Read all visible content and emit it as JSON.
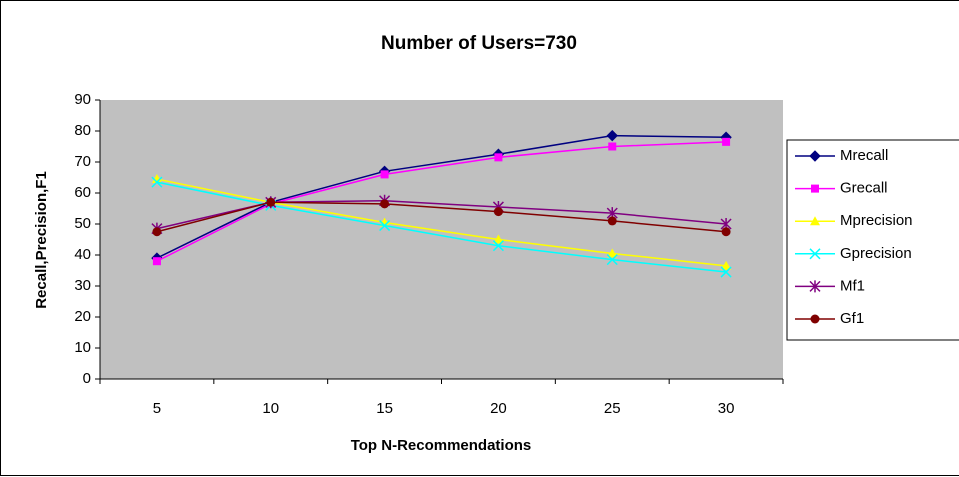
{
  "chart_data": {
    "type": "line",
    "title": "Number of Users=730",
    "x_label": "Top N-Recommendations",
    "y_label": "Recall,Precision,F1",
    "categories": [
      "5",
      "10",
      "15",
      "20",
      "25",
      "30"
    ],
    "ylim": [
      0,
      90
    ],
    "yticks": [
      0,
      10,
      20,
      30,
      40,
      50,
      60,
      70,
      80,
      90
    ],
    "grid": false,
    "legend": "right",
    "series": [
      {
        "name": "Mrecall",
        "color": "#000080",
        "marker": "diamond",
        "values": [
          39,
          57,
          67,
          72.5,
          78.5,
          78
        ]
      },
      {
        "name": "Grecall",
        "color": "#FF00FF",
        "marker": "square",
        "values": [
          38,
          56.5,
          66,
          71.5,
          75,
          76.5
        ]
      },
      {
        "name": "Mprecision",
        "color": "#FFFF00",
        "marker": "triangle",
        "values": [
          64.5,
          57,
          50.5,
          45,
          40.5,
          36.5
        ]
      },
      {
        "name": "Gprecision",
        "color": "#00FFFF",
        "marker": "x",
        "values": [
          63.5,
          56,
          49.5,
          43,
          38.5,
          34.5
        ]
      },
      {
        "name": "Mf1",
        "color": "#800080",
        "marker": "star",
        "values": [
          48.5,
          57,
          57.5,
          55.5,
          53.5,
          50
        ]
      },
      {
        "name": "Gf1",
        "color": "#800000",
        "marker": "circle",
        "values": [
          47.5,
          57,
          56.5,
          54,
          51,
          47.5
        ]
      }
    ]
  }
}
